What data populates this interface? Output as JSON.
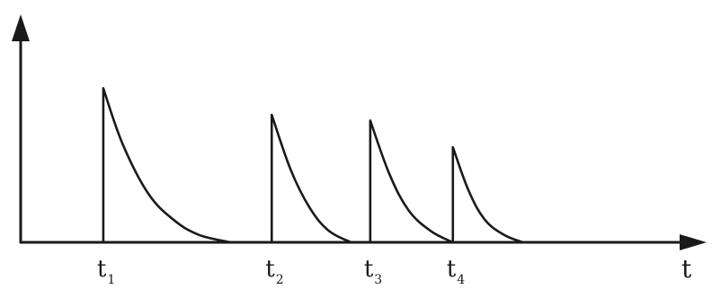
{
  "chart_data": {
    "type": "line",
    "title": "",
    "xlabel": "t",
    "ylabel": "",
    "grid": false,
    "legend": "none",
    "axes_style": "arrow-headed axes, no numeric ticks",
    "xlim": [
      0,
      10
    ],
    "ylim": [
      0,
      1
    ],
    "series": [
      {
        "x": [
          1.3,
          1.3,
          1.6,
          2.0,
          2.4,
          2.8,
          3.3
        ],
        "y": [
          0.0,
          0.81,
          0.52,
          0.26,
          0.12,
          0.04,
          0.0
        ]
      },
      {
        "x": [
          3.95,
          3.95,
          4.25,
          4.55,
          4.85,
          5.2
        ],
        "y": [
          0.0,
          0.67,
          0.38,
          0.18,
          0.06,
          0.0
        ]
      },
      {
        "x": [
          5.5,
          5.5,
          5.8,
          6.1,
          6.45,
          6.8
        ],
        "y": [
          0.0,
          0.64,
          0.36,
          0.17,
          0.06,
          0.0
        ]
      },
      {
        "x": [
          6.8,
          6.8,
          7.05,
          7.3,
          7.6,
          7.9
        ],
        "y": [
          0.0,
          0.5,
          0.27,
          0.12,
          0.04,
          0.0
        ]
      }
    ],
    "tick_labels": [
      {
        "x": 1.3,
        "base": "t",
        "sub": "1"
      },
      {
        "x": 3.95,
        "base": "t",
        "sub": "2"
      },
      {
        "x": 5.5,
        "base": "t",
        "sub": "3"
      },
      {
        "x": 6.8,
        "base": "t",
        "sub": "4"
      }
    ]
  }
}
